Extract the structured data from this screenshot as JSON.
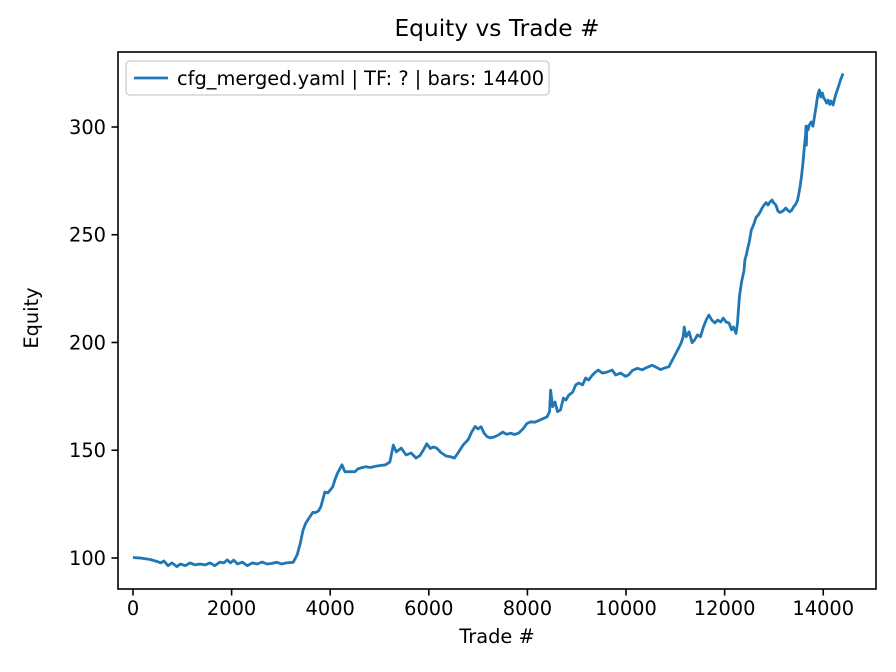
{
  "figure": {
    "background": "#ffffff",
    "frame_color": "#000000",
    "text_color": "#000000"
  },
  "chart_data": {
    "type": "line",
    "title": "Equity vs Trade #",
    "xlabel": "Trade #",
    "ylabel": "Equity",
    "grid": false,
    "legend_position": "upper left",
    "legend": [
      {
        "label": "cfg_merged.yaml | TF: ? | bars: 14400",
        "color": "#1f77b4"
      }
    ],
    "legend_frame_color": "#cccccc",
    "xlim": [
      -304,
      15070
    ],
    "ylim": [
      85.6,
      334.8
    ],
    "xticks": [
      0,
      2000,
      4000,
      6000,
      8000,
      10000,
      12000,
      14000
    ],
    "yticks": [
      100,
      150,
      200,
      250,
      300
    ],
    "series": [
      {
        "name": "cfg_merged.yaml | TF: ? | bars: 14400",
        "color": "#1f77b4",
        "points": [
          [
            0,
            100.2
          ],
          [
            180,
            99.9
          ],
          [
            350,
            99.3
          ],
          [
            500,
            98.3
          ],
          [
            560,
            97.7
          ],
          [
            630,
            98.6
          ],
          [
            710,
            96.4
          ],
          [
            790,
            97.7
          ],
          [
            890,
            96.0
          ],
          [
            960,
            97.2
          ],
          [
            1060,
            96.4
          ],
          [
            1160,
            97.7
          ],
          [
            1260,
            96.8
          ],
          [
            1360,
            97.2
          ],
          [
            1460,
            96.8
          ],
          [
            1560,
            97.7
          ],
          [
            1660,
            96.4
          ],
          [
            1760,
            98.1
          ],
          [
            1840,
            97.7
          ],
          [
            1910,
            99.1
          ],
          [
            1980,
            97.7
          ],
          [
            2040,
            99.0
          ],
          [
            2120,
            97.2
          ],
          [
            2220,
            98.1
          ],
          [
            2320,
            96.4
          ],
          [
            2420,
            97.7
          ],
          [
            2520,
            97.2
          ],
          [
            2620,
            98.1
          ],
          [
            2720,
            97.2
          ],
          [
            2820,
            97.5
          ],
          [
            2920,
            98.0
          ],
          [
            3010,
            97.2
          ],
          [
            3110,
            97.7
          ],
          [
            3250,
            98.0
          ],
          [
            3330,
            101.5
          ],
          [
            3390,
            106.5
          ],
          [
            3450,
            113.0
          ],
          [
            3500,
            116.0
          ],
          [
            3550,
            117.8
          ],
          [
            3600,
            119.5
          ],
          [
            3650,
            121.2
          ],
          [
            3700,
            121.0
          ],
          [
            3760,
            121.8
          ],
          [
            3810,
            123.7
          ],
          [
            3850,
            127.0
          ],
          [
            3890,
            130.6
          ],
          [
            3950,
            130.2
          ],
          [
            4000,
            131.5
          ],
          [
            4050,
            133.0
          ],
          [
            4100,
            136.5
          ],
          [
            4150,
            139.5
          ],
          [
            4240,
            143.2
          ],
          [
            4300,
            140.0
          ],
          [
            4400,
            140.1
          ],
          [
            4500,
            140.0
          ],
          [
            4560,
            141.3
          ],
          [
            4620,
            141.8
          ],
          [
            4720,
            142.3
          ],
          [
            4820,
            142.0
          ],
          [
            4920,
            142.6
          ],
          [
            5020,
            142.9
          ],
          [
            5120,
            143.2
          ],
          [
            5210,
            144.6
          ],
          [
            5280,
            152.4
          ],
          [
            5340,
            149.2
          ],
          [
            5440,
            151.0
          ],
          [
            5540,
            147.8
          ],
          [
            5640,
            148.7
          ],
          [
            5740,
            146.4
          ],
          [
            5820,
            147.5
          ],
          [
            5900,
            150.5
          ],
          [
            5960,
            153.0
          ],
          [
            6030,
            150.8
          ],
          [
            6090,
            151.5
          ],
          [
            6160,
            151.0
          ],
          [
            6250,
            148.9
          ],
          [
            6350,
            147.3
          ],
          [
            6450,
            146.9
          ],
          [
            6520,
            146.4
          ],
          [
            6600,
            149.0
          ],
          [
            6700,
            152.5
          ],
          [
            6800,
            155.0
          ],
          [
            6870,
            158.5
          ],
          [
            6940,
            161.0
          ],
          [
            7000,
            159.9
          ],
          [
            7060,
            160.9
          ],
          [
            7120,
            158.0
          ],
          [
            7180,
            156.3
          ],
          [
            7250,
            155.7
          ],
          [
            7330,
            156.2
          ],
          [
            7410,
            157.0
          ],
          [
            7500,
            158.4
          ],
          [
            7580,
            157.4
          ],
          [
            7660,
            157.9
          ],
          [
            7740,
            157.3
          ],
          [
            7820,
            157.9
          ],
          [
            7910,
            159.9
          ],
          [
            7990,
            162.4
          ],
          [
            8070,
            163.2
          ],
          [
            8150,
            163.0
          ],
          [
            8230,
            163.8
          ],
          [
            8310,
            164.6
          ],
          [
            8400,
            165.5
          ],
          [
            8450,
            168.0
          ],
          [
            8470,
            177.9
          ],
          [
            8510,
            170.2
          ],
          [
            8560,
            172.4
          ],
          [
            8610,
            167.9
          ],
          [
            8670,
            168.7
          ],
          [
            8730,
            174.2
          ],
          [
            8780,
            173.3
          ],
          [
            8840,
            175.6
          ],
          [
            8920,
            177.0
          ],
          [
            8980,
            180.3
          ],
          [
            9040,
            181.2
          ],
          [
            9120,
            180.3
          ],
          [
            9180,
            183.5
          ],
          [
            9240,
            182.6
          ],
          [
            9320,
            184.9
          ],
          [
            9380,
            186.3
          ],
          [
            9440,
            187.2
          ],
          [
            9520,
            185.8
          ],
          [
            9620,
            186.3
          ],
          [
            9720,
            187.2
          ],
          [
            9790,
            184.9
          ],
          [
            9890,
            185.8
          ],
          [
            9990,
            184.3
          ],
          [
            10050,
            184.9
          ],
          [
            10130,
            187.0
          ],
          [
            10230,
            188.0
          ],
          [
            10330,
            187.3
          ],
          [
            10430,
            188.5
          ],
          [
            10530,
            189.4
          ],
          [
            10630,
            188.3
          ],
          [
            10700,
            187.4
          ],
          [
            10800,
            188.3
          ],
          [
            10870,
            188.7
          ],
          [
            10920,
            191.0
          ],
          [
            10970,
            193.2
          ],
          [
            11020,
            195.3
          ],
          [
            11070,
            197.6
          ],
          [
            11120,
            199.8
          ],
          [
            11160,
            202.7
          ],
          [
            11180,
            207.2
          ],
          [
            11220,
            202.7
          ],
          [
            11280,
            204.9
          ],
          [
            11340,
            199.9
          ],
          [
            11390,
            201.2
          ],
          [
            11450,
            203.5
          ],
          [
            11510,
            202.7
          ],
          [
            11570,
            207.2
          ],
          [
            11630,
            210.6
          ],
          [
            11680,
            212.7
          ],
          [
            11740,
            210.4
          ],
          [
            11800,
            209.1
          ],
          [
            11860,
            210.4
          ],
          [
            11920,
            209.5
          ],
          [
            11970,
            211.3
          ],
          [
            12030,
            209.5
          ],
          [
            12090,
            209.0
          ],
          [
            12140,
            205.9
          ],
          [
            12180,
            207.2
          ],
          [
            12230,
            204.2
          ],
          [
            12260,
            209.0
          ],
          [
            12280,
            215.0
          ],
          [
            12300,
            221.0
          ],
          [
            12320,
            224.5
          ],
          [
            12340,
            227.6
          ],
          [
            12360,
            230.0
          ],
          [
            12390,
            233.0
          ],
          [
            12410,
            238.3
          ],
          [
            12440,
            240.6
          ],
          [
            12470,
            243.9
          ],
          [
            12500,
            246.7
          ],
          [
            12540,
            252.2
          ],
          [
            12570,
            253.7
          ],
          [
            12600,
            255.4
          ],
          [
            12640,
            258.2
          ],
          [
            12680,
            259.1
          ],
          [
            12720,
            260.5
          ],
          [
            12760,
            262.4
          ],
          [
            12800,
            263.8
          ],
          [
            12840,
            264.9
          ],
          [
            12880,
            263.8
          ],
          [
            12920,
            265.2
          ],
          [
            12960,
            266.1
          ],
          [
            13000,
            264.7
          ],
          [
            13040,
            263.8
          ],
          [
            13080,
            261.0
          ],
          [
            13120,
            260.3
          ],
          [
            13160,
            260.7
          ],
          [
            13200,
            261.4
          ],
          [
            13240,
            262.4
          ],
          [
            13280,
            261.4
          ],
          [
            13320,
            260.7
          ],
          [
            13360,
            261.4
          ],
          [
            13400,
            263.0
          ],
          [
            13440,
            264.1
          ],
          [
            13480,
            266.1
          ],
          [
            13500,
            268.5
          ],
          [
            13530,
            272.5
          ],
          [
            13560,
            277.5
          ],
          [
            13590,
            283.5
          ],
          [
            13620,
            291.5
          ],
          [
            13640,
            296.0
          ],
          [
            13650,
            300.4
          ],
          [
            13658,
            291.6
          ],
          [
            13666,
            300.4
          ],
          [
            13690,
            298.6
          ],
          [
            13720,
            301.0
          ],
          [
            13760,
            302.3
          ],
          [
            13790,
            300.3
          ],
          [
            13830,
            306.0
          ],
          [
            13860,
            310.2
          ],
          [
            13890,
            314.9
          ],
          [
            13920,
            317.2
          ],
          [
            13950,
            313.9
          ],
          [
            13980,
            315.8
          ],
          [
            14010,
            313.5
          ],
          [
            14040,
            312.5
          ],
          [
            14070,
            311.1
          ],
          [
            14100,
            312.5
          ],
          [
            14130,
            310.5
          ],
          [
            14160,
            312.0
          ],
          [
            14200,
            310.2
          ],
          [
            14250,
            314.9
          ],
          [
            14300,
            318.1
          ],
          [
            14350,
            321.8
          ],
          [
            14400,
            324.8
          ]
        ]
      }
    ]
  }
}
